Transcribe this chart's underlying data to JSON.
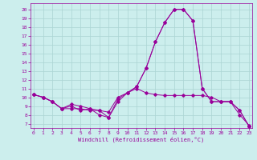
{
  "title": "",
  "xlabel": "Windchill (Refroidissement éolien,°C)",
  "bg_color": "#cceeed",
  "grid_color": "#aad4d3",
  "line_color": "#990099",
  "x_ticks": [
    0,
    1,
    2,
    3,
    4,
    5,
    6,
    7,
    8,
    9,
    10,
    11,
    12,
    13,
    14,
    15,
    16,
    17,
    18,
    19,
    20,
    21,
    22,
    23
  ],
  "y_ticks": [
    7,
    8,
    9,
    10,
    11,
    12,
    13,
    14,
    15,
    16,
    17,
    18,
    19,
    20
  ],
  "xlim": [
    -0.3,
    23.3
  ],
  "ylim": [
    6.5,
    20.7
  ],
  "series": [
    [
      10.3,
      10.0,
      9.5,
      8.7,
      8.7,
      8.7,
      8.5,
      8.5,
      7.7,
      9.5,
      10.5,
      11.2,
      13.3,
      16.3,
      18.5,
      20.0,
      20.0,
      18.7,
      11.0,
      9.5,
      9.5,
      9.5,
      8.5,
      6.7
    ],
    [
      10.3,
      10.0,
      9.5,
      8.7,
      9.0,
      8.5,
      8.7,
      8.0,
      7.7,
      9.8,
      10.5,
      11.2,
      13.3,
      16.3,
      18.5,
      20.0,
      20.0,
      18.7,
      11.0,
      9.5,
      9.5,
      9.5,
      8.5,
      6.7
    ],
    [
      10.3,
      10.0,
      9.5,
      8.7,
      9.2,
      9.0,
      8.7,
      8.5,
      8.3,
      10.0,
      10.5,
      11.0,
      10.5,
      10.3,
      10.2,
      10.2,
      10.2,
      10.2,
      10.2,
      10.0,
      9.5,
      9.5,
      8.0,
      6.8
    ]
  ]
}
